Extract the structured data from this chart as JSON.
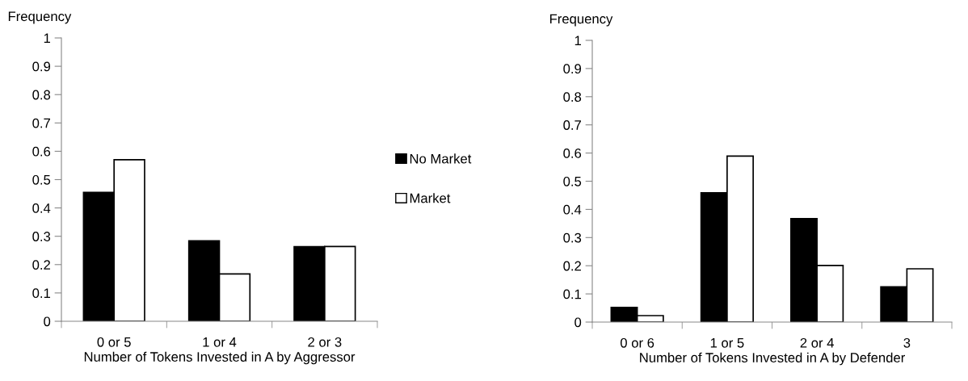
{
  "chart_data": [
    {
      "type": "bar",
      "ylabel": "Frequency",
      "xlabel": "Number of Tokens Invested in A by Aggressor",
      "categories": [
        "0 or 5",
        "1 or 4",
        "2 or 3"
      ],
      "ylim": [
        0,
        1
      ],
      "yticks": [
        0,
        0.1,
        0.2,
        0.3,
        0.4,
        0.5,
        0.6,
        0.7,
        0.8,
        0.9,
        1
      ],
      "legend": "right",
      "grid": false,
      "series": [
        {
          "name": "No Market",
          "color": "#000000",
          "values": [
            0.455,
            0.284,
            0.263
          ]
        },
        {
          "name": "Market",
          "color": "#ffffff",
          "values": [
            0.57,
            0.167,
            0.264
          ]
        }
      ]
    },
    {
      "type": "bar",
      "ylabel": "Frequency",
      "xlabel": "Number of Tokens Invested in A by Defender",
      "categories": [
        "0 or 6",
        "1 or 5",
        "2 or 4",
        "3"
      ],
      "ylim": [
        0,
        1
      ],
      "yticks": [
        0,
        0.1,
        0.2,
        0.3,
        0.4,
        0.5,
        0.6,
        0.7,
        0.8,
        0.9,
        1
      ],
      "grid": false,
      "series": [
        {
          "color": "#000000",
          "values": [
            0.052,
            0.459,
            0.367,
            0.125
          ]
        },
        {
          "color": "#ffffff",
          "values": [
            0.023,
            0.589,
            0.201,
            0.189
          ]
        }
      ]
    }
  ]
}
